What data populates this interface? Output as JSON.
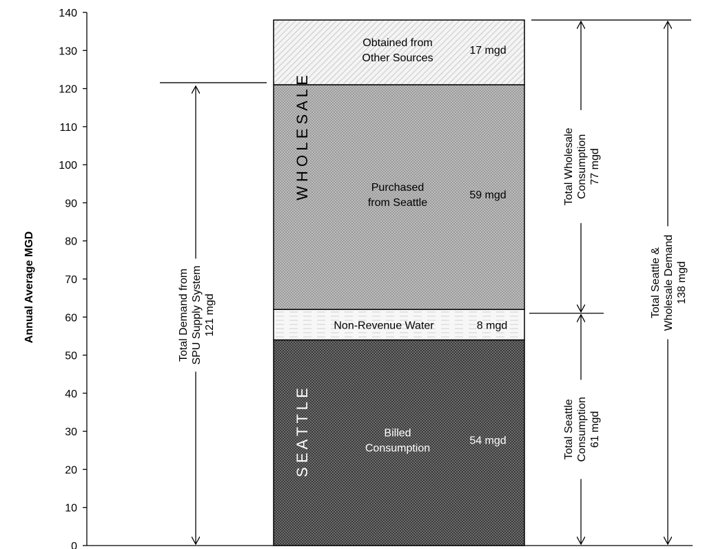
{
  "chart_data": {
    "type": "bar",
    "ylabel": "Annual Average MGD",
    "ylim": [
      0,
      140
    ],
    "yticks": [
      0,
      10,
      20,
      30,
      40,
      50,
      60,
      70,
      80,
      90,
      100,
      110,
      120,
      130,
      140
    ],
    "grid": false,
    "segments": [
      {
        "name": "billed",
        "from": 0,
        "to": 54,
        "value_label": "54 mgd",
        "label_lines": [
          "Billed",
          "Consumption"
        ],
        "fill": "#4a4a4a",
        "text_color": "light"
      },
      {
        "name": "non-revenue",
        "from": 54,
        "to": 62,
        "value_label": "8 mgd",
        "label_lines": [
          "Non-Revenue Water"
        ],
        "fill": "#f2f2f2",
        "text_color": "dark"
      },
      {
        "name": "purchased",
        "from": 62,
        "to": 121,
        "value_label": "59 mgd",
        "label_lines": [
          "Purchased",
          "from Seattle"
        ],
        "fill": "#a6a6a6",
        "text_color": "dark"
      },
      {
        "name": "other-sources",
        "from": 121,
        "to": 138,
        "value_label": "17 mgd",
        "label_lines": [
          "Obtained from",
          "Other Sources"
        ],
        "fill": "#ececec",
        "text_color": "dark"
      }
    ],
    "vertical_group_labels": [
      {
        "name": "wholesale",
        "text": "W H O L E S A L E",
        "from": 62,
        "to": 138,
        "color": "#000000"
      },
      {
        "name": "seattle",
        "text": "S E A T T L E",
        "from": 0,
        "to": 54,
        "color": "#ffffff"
      }
    ],
    "brackets": [
      {
        "name": "spu-demand",
        "from": 0,
        "to": 121,
        "position": "left",
        "lines": [
          "Total Demand from",
          "SPU Supply System",
          "121 mgd"
        ]
      },
      {
        "name": "wholesale-consumption",
        "from": 61,
        "to": 138,
        "position": "right-1",
        "lines": [
          "Total Wholesale",
          "Consumption",
          "77 mgd"
        ]
      },
      {
        "name": "seattle-consumption",
        "from": 0,
        "to": 61,
        "position": "right-1",
        "lines": [
          "Total Seattle",
          "Consumption",
          "61 mgd"
        ]
      },
      {
        "name": "seattle-wholesale-demand",
        "from": 0,
        "to": 138,
        "position": "right-2",
        "lines": [
          "Total Seattle &",
          "Wholesale Demand",
          "138 mgd"
        ]
      }
    ]
  }
}
